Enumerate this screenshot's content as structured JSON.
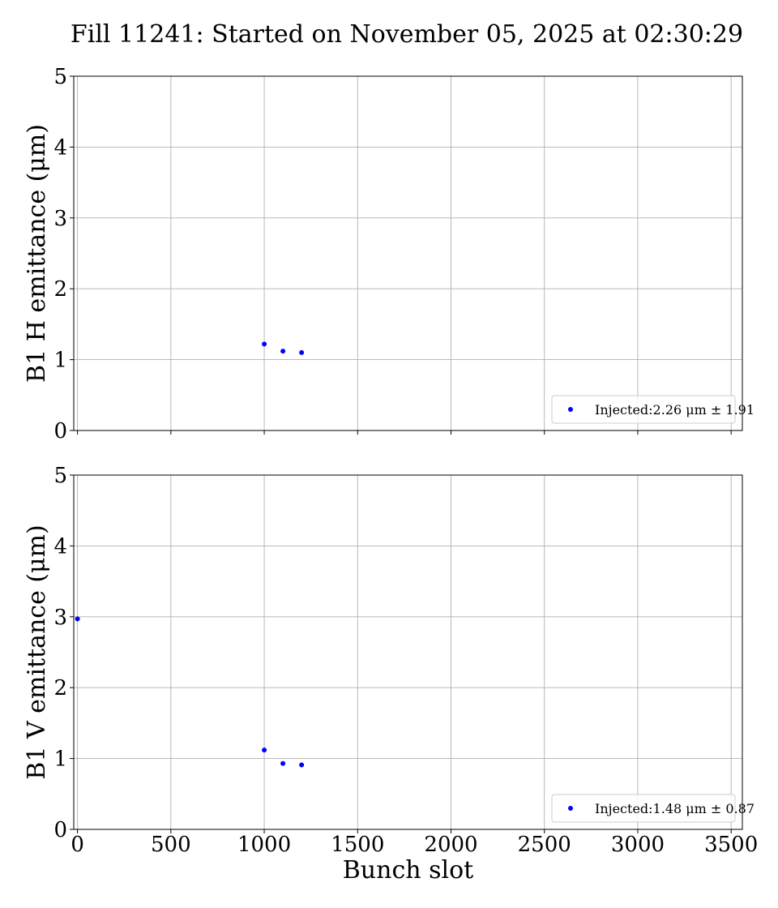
{
  "page": {
    "title": "Fill 11241: Started on November 05, 2025 at 02:30:29"
  },
  "chart_data": [
    {
      "type": "scatter",
      "ylabel": "B1 H emittance (μm)",
      "xlabel": "",
      "xlim": [
        -20,
        3560
      ],
      "ylim": [
        0,
        5
      ],
      "xticks": [
        0,
        500,
        1000,
        1500,
        2000,
        2500,
        3000,
        3500
      ],
      "yticks": [
        0,
        1,
        2,
        3,
        4,
        5
      ],
      "show_xtick_labels": false,
      "grid": true,
      "legend_position": "lower-right",
      "series": [
        {
          "name": "Injected:2.26 μm ± 1.91",
          "color": "#0000ff",
          "x": [
            1000,
            1100,
            1200
          ],
          "y": [
            1.22,
            1.12,
            1.1
          ]
        }
      ]
    },
    {
      "type": "scatter",
      "ylabel": "B1 V emittance (μm)",
      "xlabel": "Bunch slot",
      "xlim": [
        -20,
        3560
      ],
      "ylim": [
        0,
        5
      ],
      "xticks": [
        0,
        500,
        1000,
        1500,
        2000,
        2500,
        3000,
        3500
      ],
      "yticks": [
        0,
        1,
        2,
        3,
        4,
        5
      ],
      "show_xtick_labels": true,
      "grid": true,
      "legend_position": "lower-right",
      "series": [
        {
          "name": "Injected:1.48 μm ± 0.87",
          "color": "#0000ff",
          "x": [
            0,
            1000,
            1100,
            1200
          ],
          "y": [
            2.97,
            1.12,
            0.93,
            0.91
          ]
        }
      ]
    }
  ]
}
